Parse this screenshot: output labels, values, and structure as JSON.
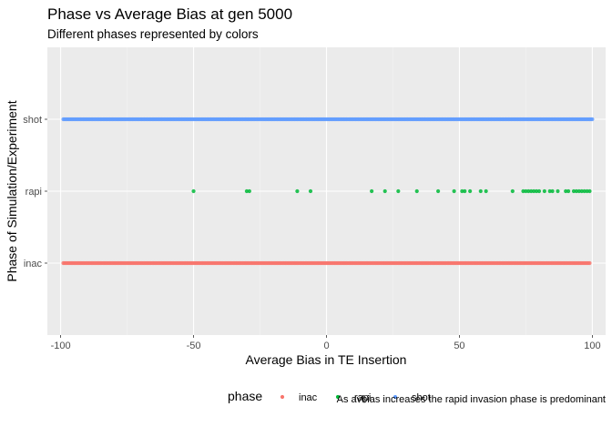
{
  "chart_data": {
    "type": "scatter",
    "title": "Phase vs Average Bias at gen 5000",
    "subtitle": "Different phases represented by colors",
    "xlabel": "Average Bias in TE Insertion",
    "ylabel": "Phase of Simulation/Experiment",
    "caption": "As avbias increases the rapid invasion phase is predominant",
    "xlim": [
      -105,
      105
    ],
    "x_ticks": [
      -100,
      -50,
      0,
      50,
      100
    ],
    "x_tick_labels": [
      "-100",
      "-50",
      "0",
      "50",
      "100"
    ],
    "categories": [
      "inac",
      "rapi",
      "shot"
    ],
    "grid": true,
    "legend_position": "bottom",
    "legend_title": "phase",
    "series": [
      {
        "name": "inac",
        "color": "#F8766D",
        "x_range": [
          -99,
          99
        ],
        "dense": true
      },
      {
        "name": "rapi",
        "color": "#00BA38",
        "x": [
          -50,
          -30,
          -29,
          -11,
          -6,
          17,
          22,
          27,
          34,
          42,
          48,
          51,
          52,
          54,
          58,
          60,
          70,
          74,
          75,
          76,
          77,
          78,
          79,
          80,
          82,
          84,
          85,
          87,
          90,
          91,
          93,
          94,
          95,
          96,
          97,
          98,
          99
        ]
      },
      {
        "name": "shot",
        "color": "#619CFF",
        "x_range": [
          -99,
          100
        ],
        "dense": true
      }
    ]
  }
}
